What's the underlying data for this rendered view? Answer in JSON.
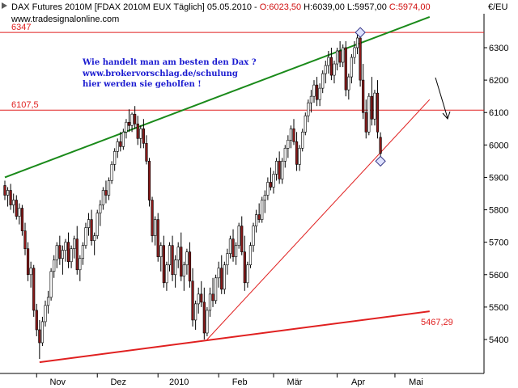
{
  "header": {
    "instrument": "DAX Futures 2010M [FDAX 2010M EUX  Täglich] 05.05.2010 - ",
    "open": "O:6023,50",
    "high": "H:6039,00",
    "low": "L:5957,00",
    "close": "C:5974,00",
    "source": "www.tradesignalonline.com",
    "currency": "€/EU"
  },
  "annotation": {
    "line1": "Wie handelt man am besten den Dax ?",
    "line2": "www.brokervorschlag.de/schulung",
    "line3": "hier werden sie geholfen !"
  },
  "chart_data": {
    "type": "candlestick",
    "title": "DAX Futures 2010M [FDAX 2010M EUX  Täglich] 05.05.2010",
    "x_tick_labels": [
      "Nov",
      "Dez",
      "2010",
      "Feb",
      "Mär",
      "Apr",
      "Mai"
    ],
    "x_tick_index": [
      11,
      32,
      53,
      74,
      93,
      115,
      135
    ],
    "y_ticks": [
      5400,
      5500,
      5600,
      5700,
      5800,
      5900,
      6000,
      6100,
      6200,
      6300
    ],
    "y_tick_labels": [
      "5400",
      "5500",
      "5600",
      "5700",
      "5800",
      "5900",
      "6000",
      "6100",
      "6200",
      "6300"
    ],
    "ylim": [
      5290,
      6375
    ],
    "grid": false,
    "bar_count": 147,
    "horizontal_levels": [
      {
        "label": "6347",
        "value": 6347,
        "color": "#e02020"
      },
      {
        "label": "6107,5",
        "value": 6107.5,
        "color": "#e02020"
      }
    ],
    "trendlines": [
      {
        "name": "upper-channel",
        "color": "#1a8a1a",
        "from": [
          0,
          5900
        ],
        "to": [
          147,
          6395
        ]
      },
      {
        "name": "support-rising",
        "color": "#e02020",
        "from": [
          70,
          5400
        ],
        "to": [
          147,
          6140
        ]
      },
      {
        "name": "long-support",
        "color": "#e02020",
        "from": [
          12,
          5330
        ],
        "to": [
          147,
          5487
        ],
        "label": "5467,29"
      }
    ],
    "markers": [
      {
        "shape": "diamond",
        "index": 123,
        "value": 6347
      },
      {
        "shape": "diamond",
        "index": 130,
        "value": 5950
      }
    ],
    "candles": [
      [
        5875,
        5890,
        5830,
        5845
      ],
      [
        5845,
        5870,
        5810,
        5860
      ],
      [
        5860,
        5880,
        5800,
        5815
      ],
      [
        5815,
        5850,
        5790,
        5830
      ],
      [
        5830,
        5845,
        5770,
        5780
      ],
      [
        5780,
        5820,
        5755,
        5805
      ],
      [
        5805,
        5815,
        5720,
        5735
      ],
      [
        5735,
        5760,
        5660,
        5680
      ],
      [
        5680,
        5700,
        5580,
        5600
      ],
      [
        5600,
        5640,
        5560,
        5620
      ],
      [
        5620,
        5630,
        5470,
        5490
      ],
      [
        5490,
        5510,
        5410,
        5430
      ],
      [
        5430,
        5460,
        5340,
        5390
      ],
      [
        5390,
        5470,
        5380,
        5455
      ],
      [
        5455,
        5520,
        5440,
        5505
      ],
      [
        5505,
        5550,
        5480,
        5530
      ],
      [
        5530,
        5620,
        5520,
        5610
      ],
      [
        5610,
        5660,
        5590,
        5645
      ],
      [
        5645,
        5700,
        5620,
        5690
      ],
      [
        5690,
        5720,
        5630,
        5650
      ],
      [
        5650,
        5690,
        5600,
        5675
      ],
      [
        5675,
        5710,
        5640,
        5700
      ],
      [
        5700,
        5730,
        5620,
        5640
      ],
      [
        5640,
        5690,
        5620,
        5680
      ],
      [
        5680,
        5720,
        5650,
        5710
      ],
      [
        5710,
        5750,
        5600,
        5615
      ],
      [
        5615,
        5660,
        5580,
        5650
      ],
      [
        5650,
        5700,
        5630,
        5690
      ],
      [
        5690,
        5760,
        5680,
        5745
      ],
      [
        5745,
        5790,
        5720,
        5770
      ],
      [
        5770,
        5800,
        5690,
        5705
      ],
      [
        5705,
        5730,
        5660,
        5720
      ],
      [
        5720,
        5800,
        5710,
        5790
      ],
      [
        5790,
        5830,
        5750,
        5815
      ],
      [
        5815,
        5870,
        5800,
        5860
      ],
      [
        5860,
        5890,
        5820,
        5845
      ],
      [
        5845,
        5900,
        5830,
        5890
      ],
      [
        5890,
        5950,
        5880,
        5940
      ],
      [
        5940,
        5990,
        5920,
        5980
      ],
      [
        5980,
        6020,
        5960,
        6010
      ],
      [
        6010,
        6040,
        5980,
        5995
      ],
      [
        5995,
        6050,
        5985,
        6040
      ],
      [
        6040,
        6080,
        6020,
        6070
      ],
      [
        6070,
        6110,
        6040,
        6060
      ],
      [
        6060,
        6100,
        6040,
        6095
      ],
      [
        6095,
        6120,
        6050,
        6065
      ],
      [
        6065,
        6090,
        6000,
        6020
      ],
      [
        6020,
        6060,
        5990,
        6050
      ],
      [
        6050,
        6080,
        5990,
        6005
      ],
      [
        6005,
        6030,
        5940,
        5950
      ],
      [
        5950,
        5960,
        5810,
        5830
      ],
      [
        5830,
        5840,
        5700,
        5720
      ],
      [
        5720,
        5780,
        5690,
        5770
      ],
      [
        5770,
        5790,
        5640,
        5655
      ],
      [
        5655,
        5700,
        5610,
        5690
      ],
      [
        5690,
        5720,
        5560,
        5575
      ],
      [
        5575,
        5640,
        5550,
        5630
      ],
      [
        5630,
        5700,
        5610,
        5690
      ],
      [
        5690,
        5720,
        5580,
        5600
      ],
      [
        5600,
        5660,
        5560,
        5645
      ],
      [
        5645,
        5700,
        5620,
        5685
      ],
      [
        5685,
        5730,
        5580,
        5595
      ],
      [
        5595,
        5640,
        5550,
        5630
      ],
      [
        5630,
        5680,
        5600,
        5670
      ],
      [
        5670,
        5700,
        5560,
        5580
      ],
      [
        5580,
        5620,
        5440,
        5460
      ],
      [
        5460,
        5520,
        5430,
        5510
      ],
      [
        5510,
        5560,
        5480,
        5540
      ],
      [
        5540,
        5580,
        5500,
        5515
      ],
      [
        5515,
        5560,
        5400,
        5420
      ],
      [
        5420,
        5500,
        5410,
        5490
      ],
      [
        5490,
        5560,
        5470,
        5540
      ],
      [
        5540,
        5590,
        5500,
        5520
      ],
      [
        5520,
        5600,
        5510,
        5590
      ],
      [
        5590,
        5640,
        5560,
        5620
      ],
      [
        5620,
        5660,
        5540,
        5555
      ],
      [
        5555,
        5640,
        5540,
        5630
      ],
      [
        5630,
        5680,
        5600,
        5665
      ],
      [
        5665,
        5720,
        5650,
        5710
      ],
      [
        5710,
        5740,
        5640,
        5655
      ],
      [
        5655,
        5700,
        5630,
        5690
      ],
      [
        5690,
        5760,
        5680,
        5750
      ],
      [
        5750,
        5780,
        5660,
        5670
      ],
      [
        5670,
        5720,
        5550,
        5575
      ],
      [
        5575,
        5640,
        5560,
        5630
      ],
      [
        5630,
        5700,
        5620,
        5690
      ],
      [
        5690,
        5760,
        5670,
        5750
      ],
      [
        5750,
        5800,
        5730,
        5785
      ],
      [
        5785,
        5820,
        5760,
        5770
      ],
      [
        5770,
        5840,
        5760,
        5830
      ],
      [
        5830,
        5860,
        5790,
        5845
      ],
      [
        5845,
        5900,
        5830,
        5885
      ],
      [
        5885,
        5930,
        5860,
        5870
      ],
      [
        5870,
        5920,
        5850,
        5910
      ],
      [
        5910,
        5960,
        5890,
        5950
      ],
      [
        5950,
        5980,
        5880,
        5895
      ],
      [
        5895,
        5960,
        5880,
        5950
      ],
      [
        5950,
        6000,
        5930,
        5990
      ],
      [
        5990,
        6030,
        5960,
        6015
      ],
      [
        6015,
        6060,
        5990,
        6050
      ],
      [
        6050,
        6080,
        6000,
        6010
      ],
      [
        6010,
        6040,
        5920,
        5940
      ],
      [
        5940,
        6000,
        5920,
        5990
      ],
      [
        5990,
        6050,
        5980,
        6040
      ],
      [
        6040,
        6100,
        6030,
        6090
      ],
      [
        6090,
        6140,
        6070,
        6130
      ],
      [
        6130,
        6170,
        6100,
        6150
      ],
      [
        6150,
        6200,
        6130,
        6185
      ],
      [
        6185,
        6210,
        6120,
        6140
      ],
      [
        6140,
        6190,
        6120,
        6175
      ],
      [
        6175,
        6230,
        6160,
        6220
      ],
      [
        6220,
        6260,
        6190,
        6245
      ],
      [
        6245,
        6290,
        6220,
        6270
      ],
      [
        6270,
        6300,
        6200,
        6215
      ],
      [
        6215,
        6260,
        6190,
        6250
      ],
      [
        6250,
        6300,
        6230,
        6290
      ],
      [
        6290,
        6320,
        6240,
        6255
      ],
      [
        6255,
        6310,
        6240,
        6300
      ],
      [
        6300,
        6320,
        6150,
        6170
      ],
      [
        6170,
        6220,
        6140,
        6210
      ],
      [
        6210,
        6280,
        6190,
        6270
      ],
      [
        6270,
        6320,
        6250,
        6300
      ],
      [
        6300,
        6347,
        6280,
        6330
      ],
      [
        6330,
        6340,
        6180,
        6200
      ],
      [
        6200,
        6250,
        6080,
        6100
      ],
      [
        6100,
        6140,
        6020,
        6040
      ],
      [
        6040,
        6160,
        6030,
        6150
      ],
      [
        6150,
        6210,
        6060,
        6080
      ],
      [
        6080,
        6170,
        6060,
        6160
      ],
      [
        6160,
        6200,
        6020,
        6040
      ],
      [
        6023.5,
        6039,
        5957,
        5974
      ]
    ]
  },
  "colors": {
    "up": "#ffffff",
    "down": "#8b1a1a",
    "wick": "#000000",
    "resistance": "#e02020",
    "channel": "#1a8a1a",
    "annotation": "#1a1ad0"
  }
}
